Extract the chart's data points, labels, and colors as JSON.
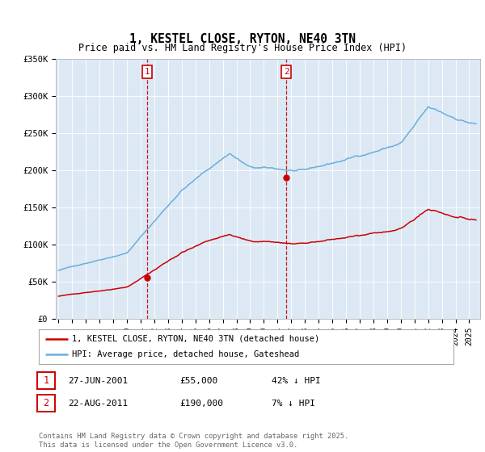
{
  "title": "1, KESTEL CLOSE, RYTON, NE40 3TN",
  "subtitle": "Price paid vs. HM Land Registry's House Price Index (HPI)",
  "legend_line1": "1, KESTEL CLOSE, RYTON, NE40 3TN (detached house)",
  "legend_line2": "HPI: Average price, detached house, Gateshead",
  "footnote": "Contains HM Land Registry data © Crown copyright and database right 2025.\nThis data is licensed under the Open Government Licence v3.0.",
  "transactions": [
    {
      "label": "1",
      "date": "27-JUN-2001",
      "price": 55000,
      "hpi_diff": "42% ↓ HPI",
      "x": 2001.49
    },
    {
      "label": "2",
      "date": "22-AUG-2011",
      "price": 190000,
      "hpi_diff": "7% ↓ HPI",
      "x": 2011.64
    }
  ],
  "ylim": [
    0,
    350000
  ],
  "xlim_min": 1994.8,
  "xlim_max": 2025.8,
  "hpi_color": "#6baed6",
  "price_color": "#cc0000",
  "vline_color": "#cc0000",
  "bg_color": "#dce9f5"
}
